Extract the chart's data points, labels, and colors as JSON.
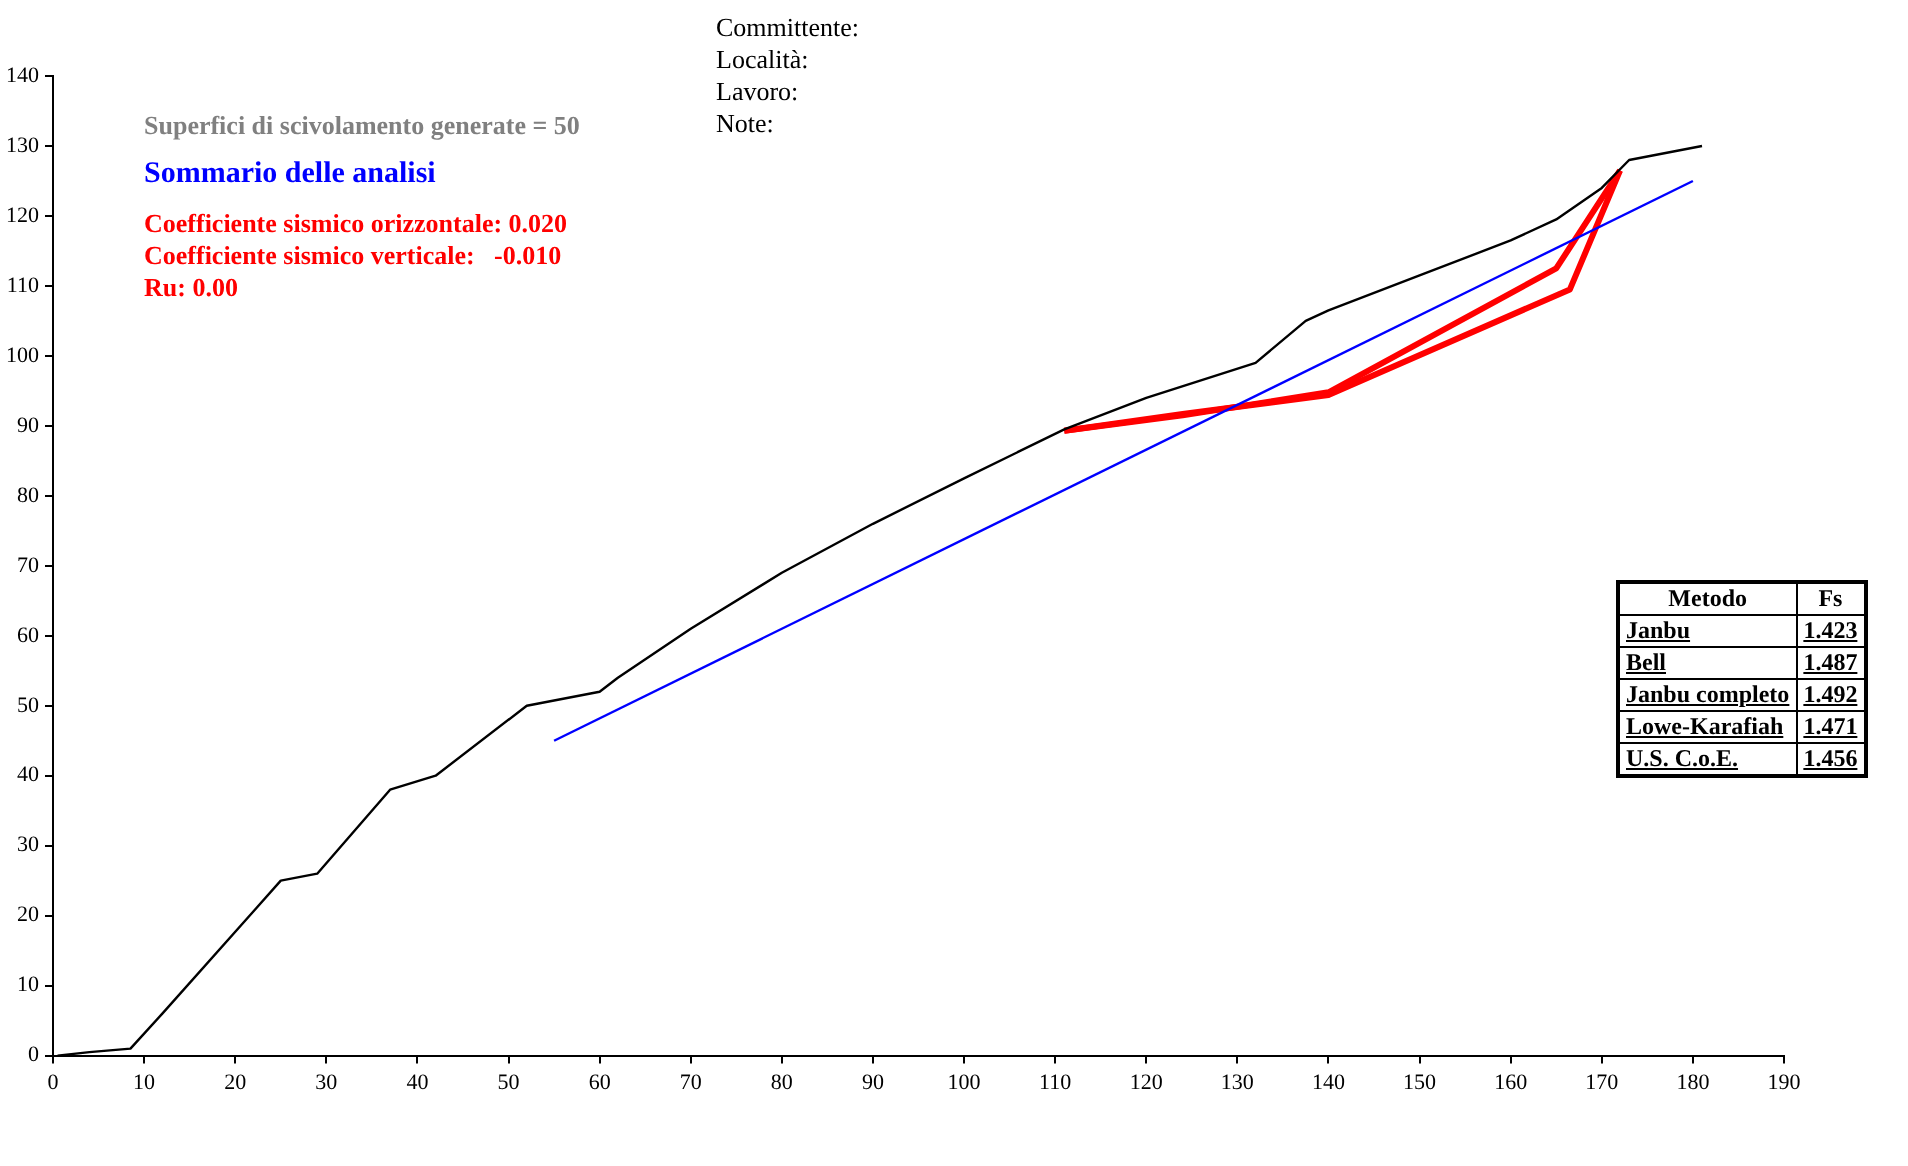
{
  "chart_data": {
    "type": "line",
    "title": "Sommario delle analisi",
    "subtitle": "Superfici di scivolamento generate = 50",
    "xlim": [
      0,
      190
    ],
    "xticks": [
      0,
      10,
      20,
      30,
      40,
      50,
      60,
      70,
      80,
      90,
      100,
      110,
      120,
      130,
      140,
      150,
      160,
      170,
      180,
      190
    ],
    "ylim": [
      0,
      140
    ],
    "yticks": [
      0,
      10,
      20,
      30,
      40,
      50,
      60,
      70,
      80,
      90,
      100,
      110,
      120,
      130,
      140
    ],
    "grid": false,
    "legend": false,
    "series": [
      {
        "color": "#000000",
        "x": [
          0.5,
          4,
          8.5,
          12,
          25,
          29,
          37,
          42,
          52,
          60,
          62,
          70,
          80,
          90,
          100,
          111,
          120,
          132,
          137.5,
          140,
          150,
          160,
          165,
          170,
          173,
          181
        ],
        "values": [
          0,
          0.5,
          1,
          6,
          25,
          26,
          38,
          40,
          50,
          52,
          54,
          61,
          69,
          76,
          82.5,
          89.5,
          94,
          99,
          105,
          106.5,
          111.5,
          116.5,
          119.5,
          124,
          128,
          130
        ]
      },
      {
        "color": "#0000ff",
        "x": [
          55,
          180
        ],
        "values": [
          45,
          125
        ]
      },
      {
        "color": "#ff0000",
        "x": [
          111,
          124,
          140,
          166.5,
          172
        ],
        "values": [
          89.3,
          91.7,
          94.4,
          109.5,
          126.5
        ]
      },
      {
        "color": "#ff0000",
        "x": [
          111,
          124,
          140,
          165,
          172
        ],
        "values": [
          89.3,
          91.5,
          94.8,
          112.5,
          126.5
        ]
      }
    ],
    "annotations": [
      "Committente:",
      "Località:",
      "Lavoro:",
      "Note:",
      "Coefficiente sismico orizzontale: 0.020",
      "Coefficiente sismico verticale:   -0.010",
      "Ru: 0.00",
      "Metodo",
      "Fs",
      "Janbu",
      "1.423",
      "Bell",
      "1.487",
      "Janbu completo",
      "1.492",
      "Lowe-Karafiah",
      "1.471",
      "U.S. C.o.E.",
      "1.456"
    ]
  }
}
